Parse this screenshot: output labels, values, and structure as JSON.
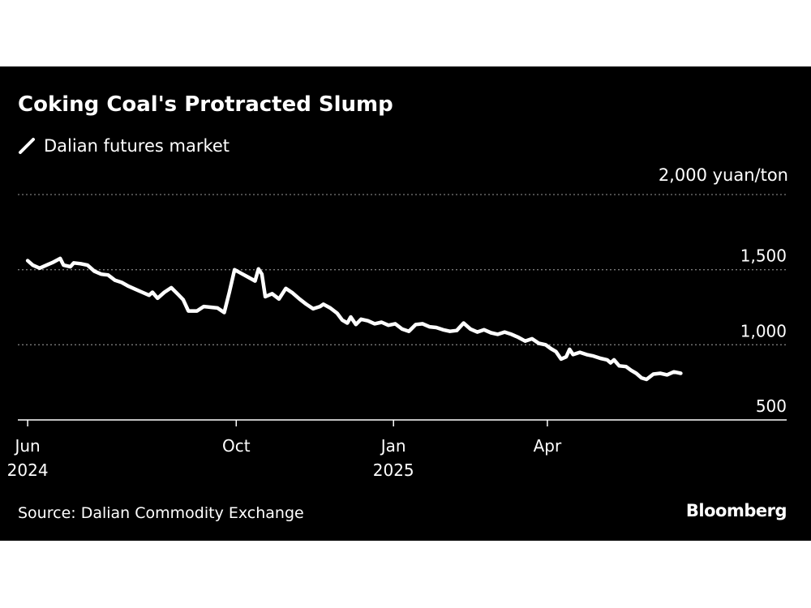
{
  "colors": {
    "background": "#000000",
    "line": "#ffffff",
    "grid": "#7a7a7a",
    "text": "#ffffff"
  },
  "chart_data": {
    "type": "line",
    "title": "Coking Coal's Protracted Slump",
    "unit_label": "2,000 yuan/ton",
    "legend": [
      "Dalian futures market"
    ],
    "legend_position": "top-left",
    "grid": true,
    "ylim": [
      500,
      2000
    ],
    "yticks": [
      {
        "value": 1500,
        "label": "1,500"
      },
      {
        "value": 1000,
        "label": "1,000"
      },
      {
        "value": 500,
        "label": "500"
      }
    ],
    "xlim": [
      "2024-05-31",
      "2025-07-31"
    ],
    "xticks": [
      {
        "date": "2024-06-01",
        "label": [
          "Jun",
          "2024"
        ]
      },
      {
        "date": "2024-10-01",
        "label": [
          "Oct",
          ""
        ]
      },
      {
        "date": "2025-01-01",
        "label": [
          "Jan",
          "2025"
        ]
      },
      {
        "date": "2025-04-01",
        "label": [
          "Apr",
          ""
        ]
      }
    ],
    "series": [
      {
        "name": "Dalian futures market",
        "points": [
          [
            "2024-06-01",
            1560
          ],
          [
            "2024-06-04",
            1530
          ],
          [
            "2024-06-08",
            1510
          ],
          [
            "2024-06-12",
            1530
          ],
          [
            "2024-06-16",
            1550
          ],
          [
            "2024-06-20",
            1575
          ],
          [
            "2024-06-22",
            1530
          ],
          [
            "2024-06-26",
            1520
          ],
          [
            "2024-06-28",
            1545
          ],
          [
            "2024-07-02",
            1540
          ],
          [
            "2024-07-06",
            1530
          ],
          [
            "2024-07-10",
            1490
          ],
          [
            "2024-07-14",
            1470
          ],
          [
            "2024-07-18",
            1465
          ],
          [
            "2024-07-22",
            1430
          ],
          [
            "2024-07-26",
            1415
          ],
          [
            "2024-07-30",
            1390
          ],
          [
            "2024-08-03",
            1370
          ],
          [
            "2024-08-07",
            1350
          ],
          [
            "2024-08-11",
            1330
          ],
          [
            "2024-08-13",
            1350
          ],
          [
            "2024-08-16",
            1310
          ],
          [
            "2024-08-20",
            1350
          ],
          [
            "2024-08-24",
            1380
          ],
          [
            "2024-08-28",
            1335
          ],
          [
            "2024-08-31",
            1300
          ],
          [
            "2024-09-03",
            1225
          ],
          [
            "2024-09-08",
            1225
          ],
          [
            "2024-09-12",
            1255
          ],
          [
            "2024-09-16",
            1250
          ],
          [
            "2024-09-20",
            1245
          ],
          [
            "2024-09-24",
            1215
          ],
          [
            "2024-09-27",
            1350
          ],
          [
            "2024-09-30",
            1500
          ],
          [
            "2024-10-04",
            1475
          ],
          [
            "2024-10-08",
            1450
          ],
          [
            "2024-10-12",
            1425
          ],
          [
            "2024-10-14",
            1505
          ],
          [
            "2024-10-16",
            1470
          ],
          [
            "2024-10-18",
            1320
          ],
          [
            "2024-10-22",
            1340
          ],
          [
            "2024-10-26",
            1305
          ],
          [
            "2024-10-30",
            1375
          ],
          [
            "2024-11-03",
            1345
          ],
          [
            "2024-11-07",
            1305
          ],
          [
            "2024-11-11",
            1270
          ],
          [
            "2024-11-15",
            1240
          ],
          [
            "2024-11-19",
            1255
          ],
          [
            "2024-11-21",
            1270
          ],
          [
            "2024-11-25",
            1245
          ],
          [
            "2024-11-29",
            1210
          ],
          [
            "2024-12-02",
            1165
          ],
          [
            "2024-12-05",
            1145
          ],
          [
            "2024-12-07",
            1185
          ],
          [
            "2024-12-10",
            1135
          ],
          [
            "2024-12-13",
            1170
          ],
          [
            "2024-12-17",
            1160
          ],
          [
            "2024-12-21",
            1140
          ],
          [
            "2024-12-25",
            1150
          ],
          [
            "2024-12-29",
            1130
          ],
          [
            "2025-01-02",
            1140
          ],
          [
            "2025-01-06",
            1105
          ],
          [
            "2025-01-10",
            1090
          ],
          [
            "2025-01-14",
            1135
          ],
          [
            "2025-01-18",
            1140
          ],
          [
            "2025-01-22",
            1120
          ],
          [
            "2025-01-26",
            1115
          ],
          [
            "2025-01-30",
            1100
          ],
          [
            "2025-02-03",
            1090
          ],
          [
            "2025-02-07",
            1095
          ],
          [
            "2025-02-11",
            1145
          ],
          [
            "2025-02-15",
            1105
          ],
          [
            "2025-02-19",
            1085
          ],
          [
            "2025-02-23",
            1100
          ],
          [
            "2025-02-27",
            1080
          ],
          [
            "2025-03-03",
            1070
          ],
          [
            "2025-03-07",
            1085
          ],
          [
            "2025-03-11",
            1070
          ],
          [
            "2025-03-15",
            1050
          ],
          [
            "2025-03-19",
            1025
          ],
          [
            "2025-03-23",
            1040
          ],
          [
            "2025-03-27",
            1010
          ],
          [
            "2025-03-31",
            1000
          ],
          [
            "2025-04-03",
            975
          ],
          [
            "2025-04-06",
            955
          ],
          [
            "2025-04-09",
            905
          ],
          [
            "2025-04-12",
            920
          ],
          [
            "2025-04-14",
            970
          ],
          [
            "2025-04-16",
            935
          ],
          [
            "2025-04-20",
            950
          ],
          [
            "2025-04-24",
            935
          ],
          [
            "2025-04-28",
            925
          ],
          [
            "2025-05-02",
            910
          ],
          [
            "2025-05-06",
            900
          ],
          [
            "2025-05-08",
            880
          ],
          [
            "2025-05-10",
            900
          ],
          [
            "2025-05-13",
            860
          ],
          [
            "2025-05-17",
            855
          ],
          [
            "2025-05-20",
            830
          ],
          [
            "2025-05-23",
            810
          ],
          [
            "2025-05-26",
            780
          ],
          [
            "2025-05-29",
            770
          ],
          [
            "2025-06-02",
            805
          ],
          [
            "2025-06-06",
            810
          ],
          [
            "2025-06-10",
            800
          ],
          [
            "2025-06-14",
            820
          ],
          [
            "2025-06-18",
            810
          ]
        ]
      }
    ]
  },
  "source_text": "Source: Dalian Commodity Exchange",
  "brand_text": "Bloomberg"
}
